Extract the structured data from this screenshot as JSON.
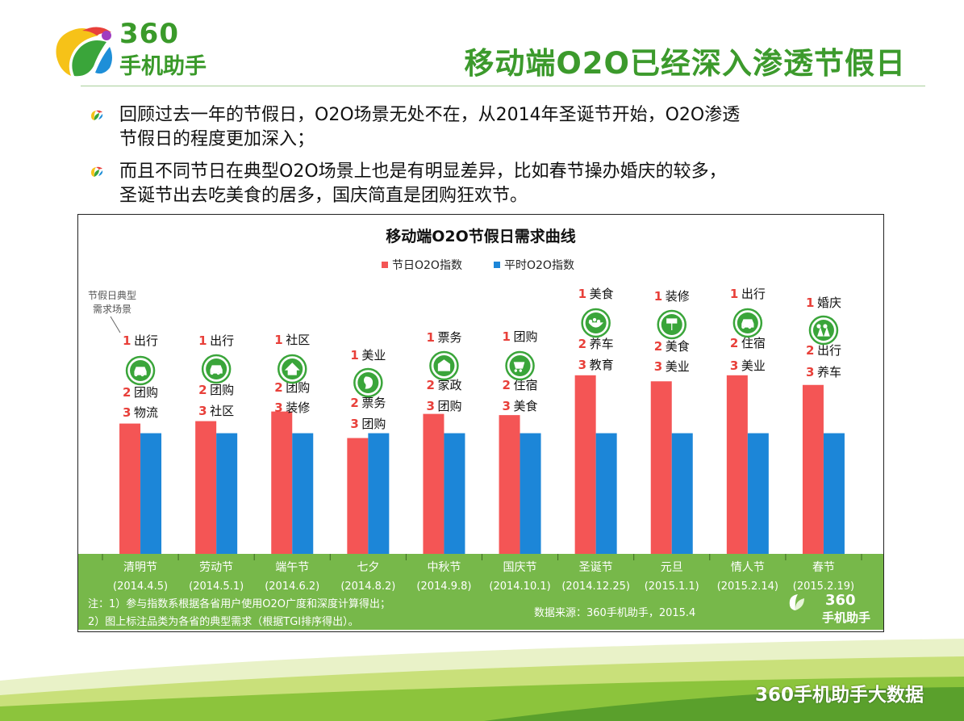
{
  "brand": {
    "name_num": "360",
    "name_cn": "手机助手",
    "green": "#3c9a2c"
  },
  "page": {
    "title": "移动端O2O已经深入渗透节假日",
    "bullets": [
      {
        "line1": "回顾过去一年的节假日，O2O场景无处不在，从2014年圣诞节开始，O2O渗透",
        "line2": "节假日的程度更加深入；"
      },
      {
        "line1": "而且不同节日在典型O2O场景上也是有明显差异，比如春节操办婚庆的较多，",
        "line2": "圣诞节出去吃美食的居多，国庆简直是团购狂欢节。"
      }
    ],
    "footer": "360手机助手大数据"
  },
  "chart_data": {
    "type": "bar",
    "title": "移动端O2O节假日需求曲线",
    "legend": [
      {
        "name": "节日O2O指数",
        "color": "#f45555"
      },
      {
        "name": "平时O2O指数",
        "color": "#1c86d8"
      }
    ],
    "callout": [
      "节假日典型",
      "需求场景"
    ],
    "categories": [
      "清明节",
      "劳动节",
      "端午节",
      "七夕",
      "中秋节",
      "国庆节",
      "圣诞节",
      "元旦",
      "情人节",
      "春节"
    ],
    "dates": [
      "(2014.4.5)",
      "(2014.5.1)",
      "(2014.6.2)",
      "(2014.8.2)",
      "(2014.9.8)",
      "(2014.10.1)",
      "(2014.12.25)",
      "(2015.1.1)",
      "(2015.2.14)",
      "(2015.2.19)"
    ],
    "series": [
      {
        "name": "节日O2O指数",
        "values": [
          108,
          110,
          118,
          96,
          116,
          115,
          148,
          143,
          148,
          140
        ]
      },
      {
        "name": "平时O2O指数",
        "values": [
          100,
          100,
          100,
          100,
          100,
          100,
          100,
          100,
          100,
          100
        ]
      }
    ],
    "ylim": [
      0,
      160
    ],
    "top_scenes": [
      [
        "出行",
        "团购",
        "物流"
      ],
      [
        "出行",
        "团购",
        "社区"
      ],
      [
        "社区",
        "团购",
        "装修"
      ],
      [
        "美业",
        "票务",
        "团购"
      ],
      [
        "票务",
        "家政",
        "团购"
      ],
      [
        "团购",
        "住宿",
        "美食"
      ],
      [
        "美食",
        "养车",
        "教育"
      ],
      [
        "装修",
        "美食",
        "美业"
      ],
      [
        "出行",
        "住宿",
        "美业"
      ],
      [
        "婚庆",
        "出行",
        "养车"
      ]
    ],
    "rank_labels": [
      "1",
      "2",
      "3"
    ],
    "notes": [
      "注：1）参与指数系根据各省用户使用O2O广度和深度计算得出；",
      "2）图上标注品类为各省的典型需求（根据TGI排序得出）。"
    ],
    "source": "数据来源：360手机助手，2015.4",
    "watermark": {
      "num": "360",
      "cn": "手机助手"
    }
  }
}
